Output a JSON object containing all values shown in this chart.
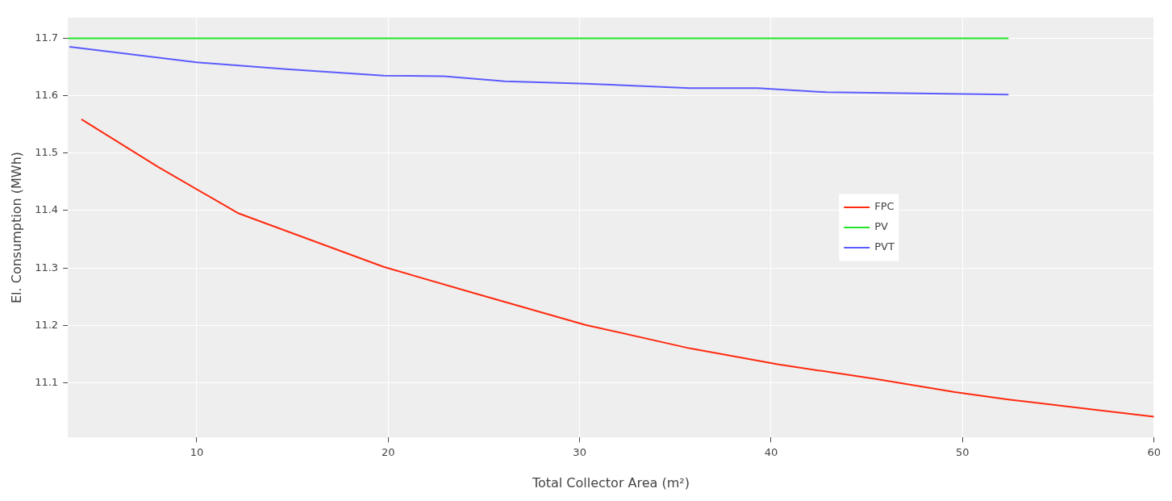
{
  "chart_data": {
    "type": "line",
    "xlabel": "Total Collector Area (m²)",
    "ylabel": "El. Consumption (MWh)",
    "xlim": [
      3.27,
      60
    ],
    "xticks": [
      10,
      20,
      30,
      40,
      50,
      60
    ],
    "ylim": [
      11.005,
      11.736
    ],
    "yticks": [
      11.1,
      11.2,
      11.3,
      11.4,
      11.5,
      11.6,
      11.7
    ],
    "grid": true,
    "legend": "right",
    "marker": "none",
    "line_style": "solid",
    "series": [
      {
        "name": "FPC",
        "color": "#ff2a0f",
        "x": [
          3.98,
          7.98,
          12.19,
          19.76,
          24.4,
          30.3,
          35.76,
          40.4,
          45.4,
          49.6,
          52.4,
          60
        ],
        "values": [
          11.559,
          11.476,
          11.395,
          11.302,
          11.257,
          11.201,
          11.16,
          11.132,
          11.107,
          11.084,
          11.071,
          11.041
        ]
      },
      {
        "name": "PV",
        "color": "#22e52a",
        "x": [
          3.27,
          52.4
        ],
        "values": [
          11.7,
          11.7
        ]
      },
      {
        "name": "PVT",
        "color": "#5b5bff",
        "x": [
          3.35,
          10,
          14.7,
          19.76,
          22.9,
          26.1,
          30.3,
          35.76,
          39.3,
          42.9,
          52.4
        ],
        "values": [
          11.685,
          11.658,
          11.646,
          11.635,
          11.634,
          11.625,
          11.621,
          11.613,
          11.613,
          11.606,
          11.602
        ]
      }
    ]
  }
}
